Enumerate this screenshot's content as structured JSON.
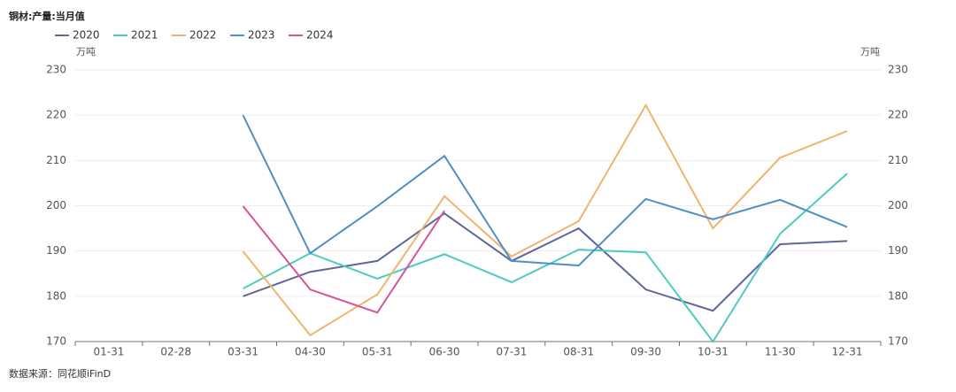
{
  "chart_data": {
    "type": "line",
    "title": "铜材:产量:当月值",
    "y_axis_label": "万吨",
    "y2_axis_label": "万吨",
    "categories": [
      "01-31",
      "02-28",
      "03-31",
      "04-30",
      "05-31",
      "06-30",
      "07-31",
      "08-31",
      "09-30",
      "10-31",
      "11-30",
      "12-31"
    ],
    "series": [
      {
        "name": "2020",
        "color": "#5f6699",
        "values": [
          null,
          null,
          180,
          185.4,
          187.8,
          198.3,
          187.8,
          195,
          181.5,
          176.8,
          191.5,
          192.2
        ]
      },
      {
        "name": "2021",
        "color": "#4ecbc1",
        "values": [
          null,
          null,
          181.7,
          189.5,
          183.9,
          189.3,
          183.1,
          190.3,
          189.7,
          170,
          193.8,
          207.1
        ]
      },
      {
        "name": "2022",
        "color": "#f0b46c",
        "values": [
          null,
          null,
          189.9,
          171.4,
          180.4,
          202.1,
          188.8,
          196.6,
          222.2,
          195,
          210.6,
          216.5
        ]
      },
      {
        "name": "2023",
        "color": "#4f8fc4",
        "values": [
          null,
          null,
          220,
          189.5,
          199.9,
          211,
          187.8,
          186.8,
          201.5,
          197,
          201.3,
          195.3
        ]
      },
      {
        "name": "2024",
        "color": "#d5559a",
        "values": [
          null,
          null,
          199.9,
          181.5,
          176.4,
          198.9,
          null,
          null,
          null,
          null,
          null,
          null
        ]
      }
    ],
    "ylim": [
      170,
      230
    ],
    "yticks": [
      170,
      180,
      190,
      200,
      210,
      220,
      230
    ],
    "y2lim": [
      170,
      230
    ],
    "y2ticks": [
      170,
      180,
      190,
      200,
      210,
      220,
      230
    ],
    "grid": true,
    "legend": "top-left",
    "source": "数据来源：同花顺iFinD"
  }
}
